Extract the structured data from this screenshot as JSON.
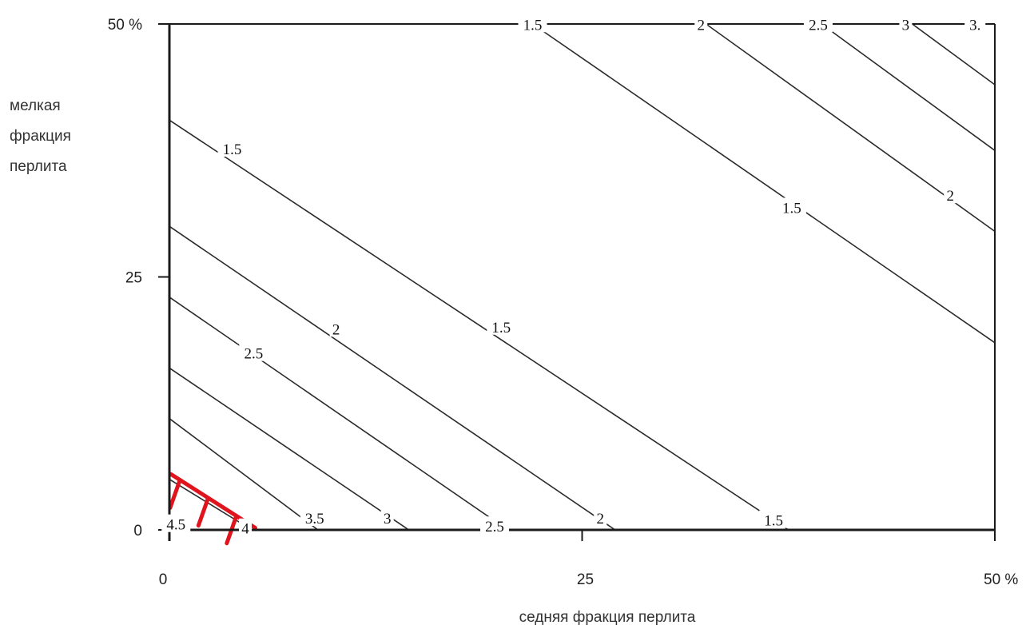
{
  "chart_data": {
    "type": "contour",
    "xlabel": "седняя фракция перлита",
    "ylabel_lines": [
      "мелкая",
      "фракция",
      "перлита"
    ],
    "xlim": [
      0,
      50
    ],
    "ylim": [
      0,
      50
    ],
    "x_ticks": [
      {
        "value": 0,
        "label": "0"
      },
      {
        "value": 25,
        "label": "25"
      },
      {
        "value": 50,
        "label": "50 %"
      }
    ],
    "y_ticks": [
      {
        "value": 0,
        "label": "0"
      },
      {
        "value": 25,
        "label": "25"
      },
      {
        "value": 50,
        "label": "50 %"
      }
    ],
    "contours": [
      {
        "level": "1.5",
        "points": [
          [
            22,
            50
          ],
          [
            50,
            18.5
          ]
        ]
      },
      {
        "level": "2",
        "points": [
          [
            32.5,
            50
          ],
          [
            50,
            29.5
          ]
        ]
      },
      {
        "level": "2.5",
        "points": [
          [
            39.5,
            50
          ],
          [
            50,
            37.5
          ]
        ]
      },
      {
        "level": "3",
        "points": [
          [
            45,
            50
          ],
          [
            50,
            44
          ]
        ]
      },
      {
        "level": "1.5",
        "points": [
          [
            0,
            40.5
          ],
          [
            37.5,
            0
          ]
        ]
      },
      {
        "level": "2",
        "points": [
          [
            0,
            30
          ],
          [
            27,
            0
          ]
        ]
      },
      {
        "level": "2.5",
        "points": [
          [
            0,
            23
          ],
          [
            20.5,
            0
          ]
        ]
      },
      {
        "level": "3",
        "points": [
          [
            0,
            16
          ],
          [
            14.5,
            0
          ]
        ]
      },
      {
        "level": "3.5",
        "points": [
          [
            0,
            11
          ],
          [
            9,
            0
          ]
        ]
      },
      {
        "level": "4",
        "points": [
          [
            0,
            5
          ],
          [
            5,
            0
          ]
        ]
      }
    ],
    "contour_labels": [
      {
        "text": "1.5",
        "x": 22,
        "y": 49.9
      },
      {
        "text": "2",
        "x": 32.2,
        "y": 49.9
      },
      {
        "text": "2.5",
        "x": 39.3,
        "y": 49.9
      },
      {
        "text": "3",
        "x": 44.6,
        "y": 49.9
      },
      {
        "text": "3.",
        "x": 48.8,
        "y": 49.9
      },
      {
        "text": "1.5",
        "x": 3.8,
        "y": 37.6
      },
      {
        "text": "1.5",
        "x": 37.7,
        "y": 31.8
      },
      {
        "text": "2",
        "x": 47.3,
        "y": 33
      },
      {
        "text": "2",
        "x": 10.1,
        "y": 19.8
      },
      {
        "text": "1.5",
        "x": 20.1,
        "y": 20
      },
      {
        "text": "2.5",
        "x": 5.1,
        "y": 17.4
      },
      {
        "text": "3.5",
        "x": 8.8,
        "y": 1.1
      },
      {
        "text": "3",
        "x": 13.2,
        "y": 1.1
      },
      {
        "text": "2.5",
        "x": 19.7,
        "y": 0.3
      },
      {
        "text": "2",
        "x": 26.1,
        "y": 1.1
      },
      {
        "text": "1.5",
        "x": 36.6,
        "y": 0.9
      },
      {
        "text": "4.5",
        "x": 0.4,
        "y": 0.5
      },
      {
        "text": "4",
        "x": 4.6,
        "y": 0.1
      }
    ],
    "colors": {
      "contour": "#2b2b2b",
      "axis": "#1a1a1a",
      "infeasible_region": "#e0141c"
    }
  }
}
